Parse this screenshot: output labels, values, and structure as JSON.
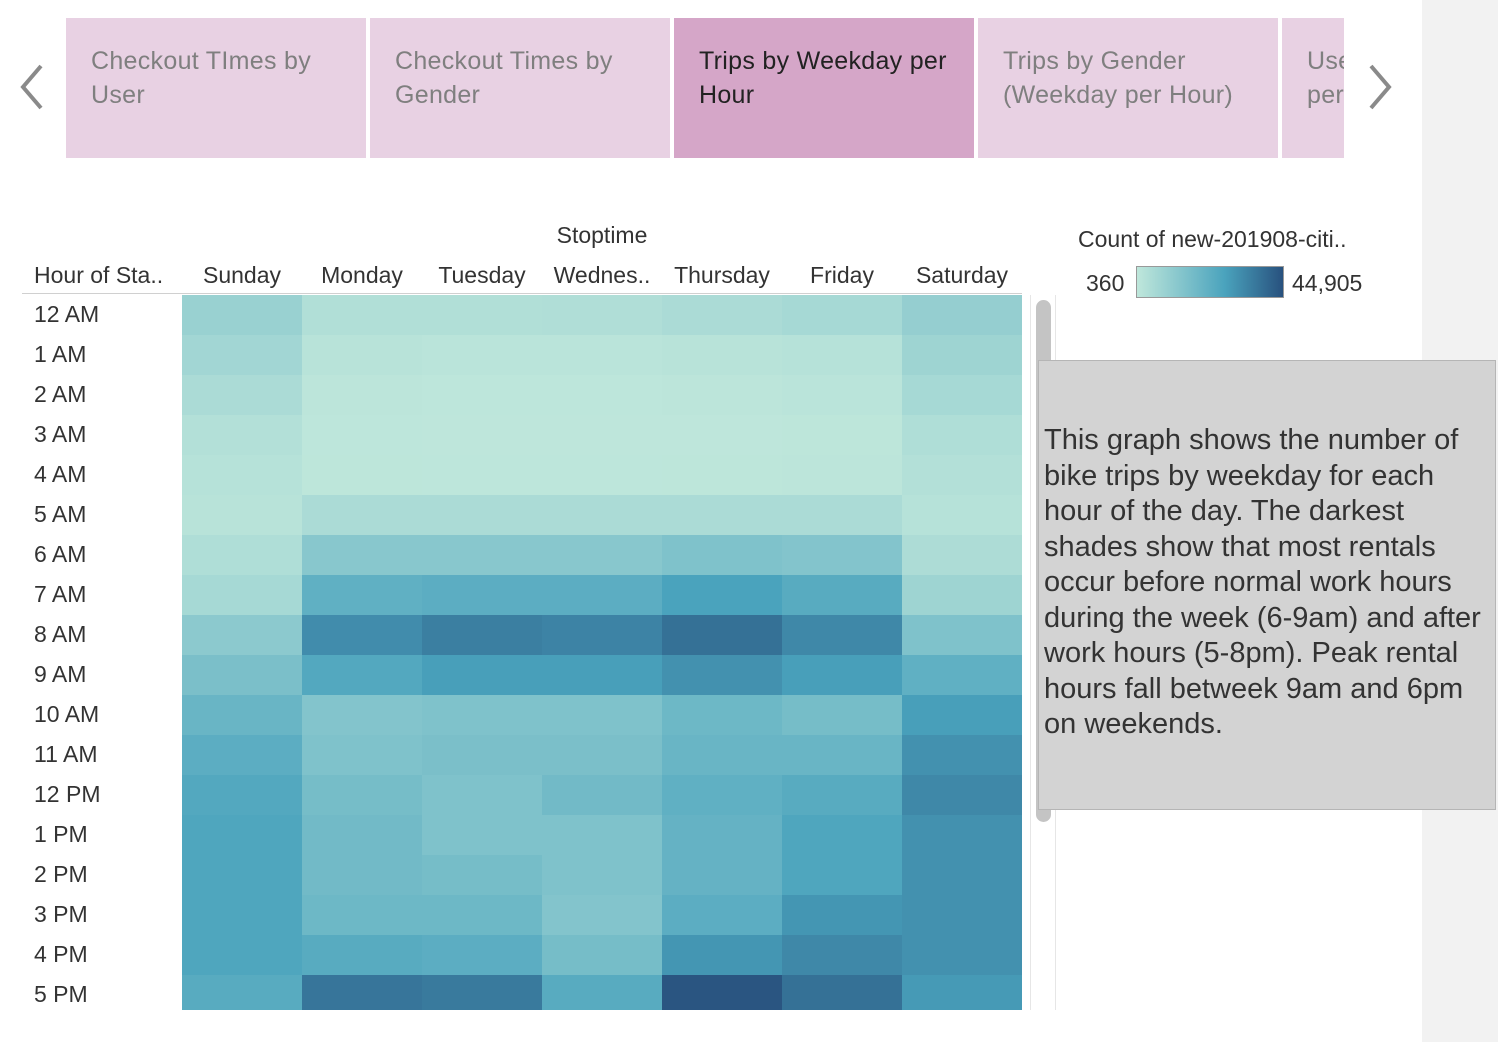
{
  "tabs": [
    {
      "label": "Checkout TImes by User",
      "active": false
    },
    {
      "label": "Checkout Times by Gender",
      "active": false
    },
    {
      "label": "Trips by Weekday per Hour",
      "active": true
    },
    {
      "label": "Trips by Gender (Weekday per Hour)",
      "active": false
    },
    {
      "label": "User Trips by Weekday per Hour",
      "active": false
    }
  ],
  "nav": {
    "prev_icon": "chevron-left-icon",
    "next_icon": "chevron-right-icon"
  },
  "chart_data": {
    "type": "heatmap",
    "column_title": "Stoptime",
    "row_header": "Hour of Sta..",
    "columns": [
      "Sunday",
      "Monday",
      "Tuesday",
      "Wednes..",
      "Thursday",
      "Friday",
      "Saturday"
    ],
    "rows": [
      "12 AM",
      "1 AM",
      "2 AM",
      "3 AM",
      "4 AM",
      "5 AM",
      "6 AM",
      "7 AM",
      "8 AM",
      "9 AM",
      "10 AM",
      "11 AM",
      "12 PM",
      "1 PM",
      "2 PM",
      "3 PM",
      "4 PM",
      "5 PM"
    ],
    "values": [
      [
        9000,
        3500,
        3500,
        3800,
        5000,
        6000,
        10000
      ],
      [
        7000,
        2000,
        1500,
        1500,
        2000,
        2500,
        8000
      ],
      [
        5000,
        1000,
        800,
        800,
        1000,
        1500,
        6000
      ],
      [
        3000,
        800,
        600,
        600,
        700,
        900,
        4000
      ],
      [
        2500,
        900,
        800,
        800,
        900,
        1000,
        3000
      ],
      [
        2000,
        5000,
        5000,
        5000,
        5000,
        5000,
        2500
      ],
      [
        4000,
        13000,
        13000,
        13000,
        15000,
        14000,
        4500
      ],
      [
        6000,
        22000,
        23000,
        23000,
        27000,
        24000,
        8000
      ],
      [
        12000,
        32000,
        35000,
        34000,
        38000,
        33000,
        15000
      ],
      [
        16000,
        25000,
        28000,
        28000,
        31000,
        28000,
        22000
      ],
      [
        20000,
        14000,
        15000,
        15000,
        19000,
        17000,
        28000
      ],
      [
        23000,
        15000,
        16000,
        16000,
        20000,
        20000,
        31000
      ],
      [
        25000,
        17000,
        15000,
        18000,
        22000,
        24000,
        33000
      ],
      [
        26000,
        18000,
        15000,
        15000,
        21000,
        26000,
        31000
      ],
      [
        26000,
        18000,
        17000,
        15000,
        21000,
        26000,
        31000
      ],
      [
        26000,
        19000,
        19000,
        14000,
        23000,
        30000,
        31000
      ],
      [
        26000,
        24000,
        23000,
        17000,
        30000,
        33000,
        31000
      ],
      [
        24000,
        37000,
        36000,
        24000,
        44000,
        38000,
        29000
      ]
    ],
    "legend": {
      "title": "Count of new-201908-citi..",
      "min": 360,
      "max": 44905,
      "min_label": "360",
      "max_label": "44,905"
    },
    "colors": {
      "low": "#bfe7db",
      "mid": "#4aa3bd",
      "high": "#28517e"
    }
  },
  "annotation": {
    "text": "This graph shows the number of bike trips by weekday for each hour of the day. The darkest shades show that most rentals occur before normal work hours during the week (6-9am) and after work hours (5-8pm). Peak rental hours fall betweek 9am and 6pm on weekends."
  }
}
